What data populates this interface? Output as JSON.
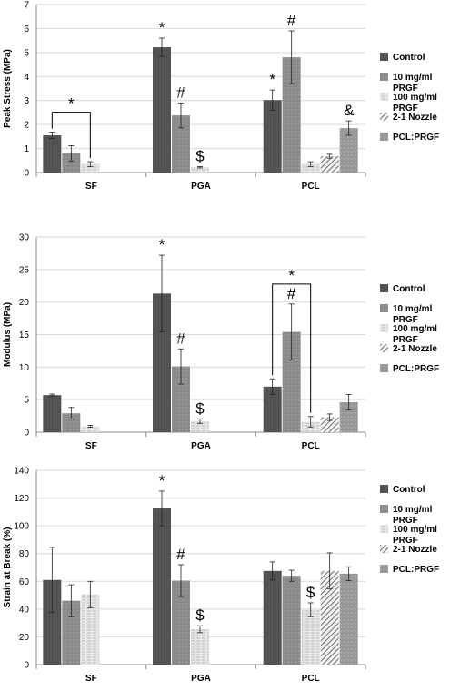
{
  "chart_data": [
    {
      "type": "bar",
      "ylabel": "Peak Stress (MPa)",
      "ylim": [
        0,
        7
      ],
      "yticks": [
        0,
        1,
        2,
        3,
        4,
        5,
        6,
        7
      ],
      "grid": true,
      "legend": "right",
      "categories": [
        "SF",
        "PGA",
        "PCL"
      ],
      "series": [
        {
          "name": "Control",
          "values": [
            1.55,
            5.22,
            3.02
          ],
          "errors": [
            0.13,
            0.38,
            0.42
          ]
        },
        {
          "name": "10 mg/ml PRGF",
          "values": [
            0.8,
            2.38,
            4.8
          ],
          "errors": [
            0.32,
            0.52,
            1.1
          ]
        },
        {
          "name": "100 mg/ml PRGF",
          "values": [
            0.35,
            0.22,
            0.35
          ],
          "errors": [
            0.1,
            0.03,
            0.1
          ]
        },
        {
          "name": "2-1 Nozzle",
          "values": [
            null,
            null,
            0.68
          ],
          "errors": [
            null,
            null,
            0.08
          ]
        },
        {
          "name": "PCL:PRGF",
          "values": [
            null,
            null,
            1.85
          ],
          "errors": [
            null,
            null,
            0.3
          ]
        }
      ],
      "annotations": [
        {
          "text": "*",
          "category": "SF",
          "bracket": [
            0,
            2
          ]
        },
        {
          "text": "*",
          "category": "PGA",
          "series": 0
        },
        {
          "text": "#",
          "category": "PGA",
          "series": 1
        },
        {
          "text": "$",
          "category": "PGA",
          "series": 2
        },
        {
          "text": "*",
          "category": "PCL",
          "series": 0
        },
        {
          "text": "#",
          "category": "PCL",
          "series": 1
        },
        {
          "text": "&",
          "category": "PCL",
          "series": 4
        }
      ]
    },
    {
      "type": "bar",
      "ylabel": "Modulus (MPa)",
      "ylim": [
        0,
        30
      ],
      "yticks": [
        0,
        5,
        10,
        15,
        20,
        25,
        30
      ],
      "grid": true,
      "legend": "right",
      "categories": [
        "SF",
        "PGA",
        "PCL"
      ],
      "series": [
        {
          "name": "Control",
          "values": [
            5.7,
            21.3,
            7.0
          ],
          "errors": [
            0.15,
            5.9,
            1.2
          ]
        },
        {
          "name": "10 mg/ml PRGF",
          "values": [
            2.9,
            10.1,
            15.4
          ],
          "errors": [
            0.9,
            2.7,
            4.3
          ]
        },
        {
          "name": "100 mg/ml PRGF",
          "values": [
            0.9,
            1.7,
            1.6
          ],
          "errors": [
            0.15,
            0.35,
            0.8
          ]
        },
        {
          "name": "2-1 Nozzle",
          "values": [
            null,
            null,
            2.3
          ],
          "errors": [
            null,
            null,
            0.5
          ]
        },
        {
          "name": "PCL:PRGF",
          "values": [
            null,
            null,
            4.6
          ],
          "errors": [
            null,
            null,
            1.2
          ]
        }
      ],
      "annotations": [
        {
          "text": "*",
          "category": "PGA",
          "series": 0
        },
        {
          "text": "#",
          "category": "PGA",
          "series": 1
        },
        {
          "text": "$",
          "category": "PGA",
          "series": 2
        },
        {
          "text": "*",
          "category": "PCL",
          "bracket": [
            0,
            2
          ]
        },
        {
          "text": "#",
          "category": "PCL",
          "series": 1
        }
      ]
    },
    {
      "type": "bar",
      "ylabel": "Strain at Break (%)",
      "ylim": [
        0,
        140
      ],
      "yticks": [
        0,
        20,
        40,
        60,
        80,
        100,
        120,
        140
      ],
      "grid": true,
      "legend": "right",
      "categories": [
        "SF",
        "PGA",
        "PCL"
      ],
      "series": [
        {
          "name": "Control",
          "values": [
            61,
            112.5,
            67.5
          ],
          "errors": [
            23.5,
            12.5,
            6.5
          ]
        },
        {
          "name": "10 mg/ml PRGF",
          "values": [
            46,
            60.5,
            64
          ],
          "errors": [
            11.5,
            11.5,
            4
          ]
        },
        {
          "name": "100 mg/ml PRGF",
          "values": [
            50.5,
            25.5,
            39.5
          ],
          "errors": [
            9.5,
            2.5,
            5
          ]
        },
        {
          "name": "2-1 Nozzle",
          "values": [
            null,
            null,
            67.5
          ],
          "errors": [
            null,
            null,
            13
          ]
        },
        {
          "name": "PCL:PRGF",
          "values": [
            null,
            null,
            65.5
          ],
          "errors": [
            null,
            null,
            5
          ]
        }
      ],
      "annotations": [
        {
          "text": "*",
          "category": "PGA",
          "series": 0
        },
        {
          "text": "#",
          "category": "PGA",
          "series": 1
        },
        {
          "text": "$",
          "category": "PGA",
          "series": 2
        },
        {
          "text": "$",
          "category": "PCL",
          "series": 2
        }
      ]
    }
  ],
  "legend": [
    {
      "lines": [
        "Control"
      ],
      "pattern": "solid-dark",
      "color": "#555555"
    },
    {
      "lines": [
        "10 mg/ml",
        "PRGF"
      ],
      "pattern": "solid-mid",
      "color": "#8c8c8c"
    },
    {
      "lines": [
        "100 mg/ml",
        "PRGF"
      ],
      "pattern": "light-dashes",
      "color": "#d4d4d4"
    },
    {
      "lines": [
        "2-1 Nozzle"
      ],
      "pattern": "diagonal-hatch",
      "color": "#7a7a7a"
    },
    {
      "lines": [
        "PCL:PRGF"
      ],
      "pattern": "solid-mid2",
      "color": "#9a9a9a"
    }
  ]
}
